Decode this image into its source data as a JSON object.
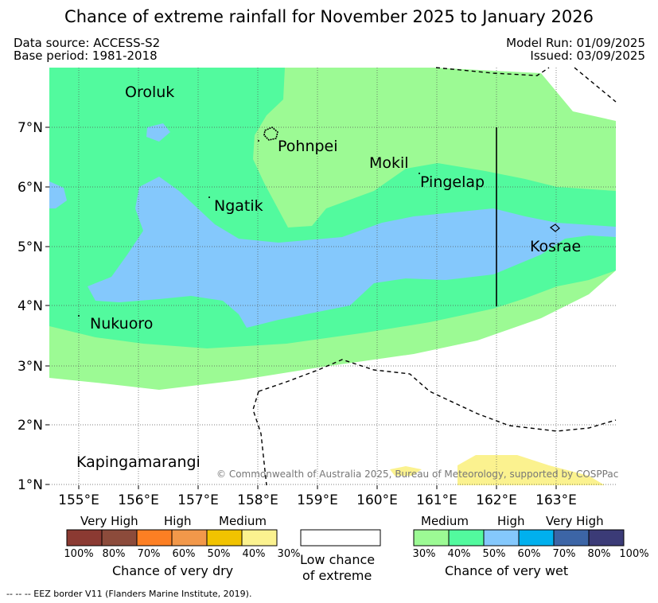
{
  "title": "Chance of extreme rainfall for November 2025 to January 2026",
  "meta": {
    "data_source": "Data source: ACCESS-S2",
    "base_period": "Base period: 1981-2018",
    "model_run": "Model Run: 01/09/2025",
    "issued": "Issued: 03/09/2025"
  },
  "axes": {
    "lon_ticks": [
      "155°E",
      "156°E",
      "157°E",
      "158°E",
      "159°E",
      "160°E",
      "161°E",
      "162°E",
      "163°E"
    ],
    "lat_ticks": [
      "7°N",
      "6°N",
      "5°N",
      "4°N",
      "3°N",
      "2°N",
      "1°N"
    ]
  },
  "places": [
    "Oroluk",
    "Pohnpei",
    "Mokil",
    "Pingelap",
    "Ngatik",
    "Kosrae",
    "Nukuoro",
    "Kapingamarangi"
  ],
  "copyright": "© Commonwealth of Australia 2025, Bureau of Meteorology, supported by COSPPac",
  "legend": {
    "dry": {
      "headers": [
        "Very High",
        "High",
        "Medium"
      ],
      "percent_labels": [
        "100%",
        "80%",
        "70%",
        "60%",
        "50%",
        "40%",
        "30%"
      ],
      "colors": [
        "#8b3a32",
        "#8c4b3b",
        "#fd7f23",
        "#f2984a",
        "#f1c300",
        "#fbf28f"
      ],
      "caption": "Chance of very dry"
    },
    "neutral": {
      "line1": "Low chance",
      "line2": "of extreme"
    },
    "wet": {
      "headers": [
        "Medium",
        "High",
        "Very High"
      ],
      "percent_labels": [
        "30%",
        "40%",
        "50%",
        "60%",
        "70%",
        "80%",
        "100%"
      ],
      "colors": [
        "#9cfa94",
        "#52fa9e",
        "#84c8fc",
        "#00b0ee",
        "#3c65a6",
        "#3b3b77"
      ],
      "caption": "Chance of very wet"
    }
  },
  "footnote": "-- -- -- EEZ border V11 (Flanders Marine Institute, 2019)."
}
